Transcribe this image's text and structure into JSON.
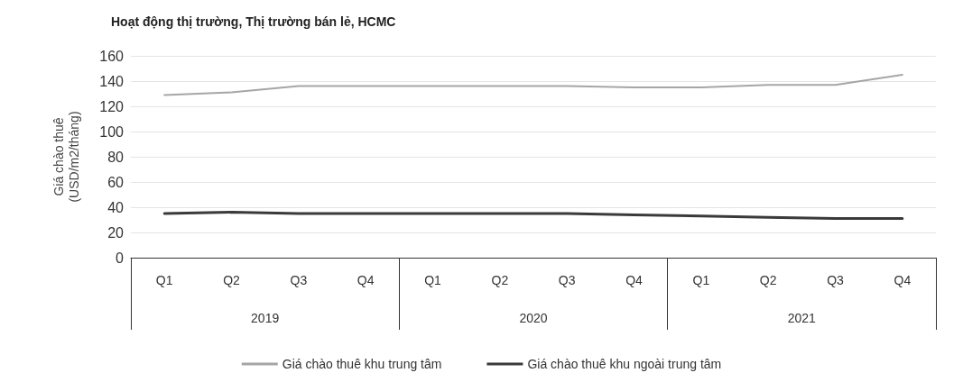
{
  "chart_data": {
    "type": "line",
    "title": "Hoạt động thị trường, Thị trường bán lẻ, HCMC",
    "ylabel": "Giá chào thuê\n(USD/m2/tháng)",
    "categories": [
      "Q1",
      "Q2",
      "Q3",
      "Q4",
      "Q1",
      "Q2",
      "Q3",
      "Q4",
      "Q1",
      "Q2",
      "Q3",
      "Q4"
    ],
    "annotations": [
      "2019",
      "2020",
      "2021"
    ],
    "series": [
      {
        "name": "Giá chào thuê khu trung tâm",
        "color": "#a6a6a6",
        "values": [
          129,
          131,
          136,
          136,
          136,
          136,
          136,
          135,
          135,
          137,
          137,
          145
        ]
      },
      {
        "name": "Giá chào thuê khu ngoài trung tâm",
        "color": "#3a3a3a",
        "values": [
          35,
          36,
          35,
          35,
          35,
          35,
          35,
          34,
          33,
          32,
          31,
          31
        ]
      }
    ],
    "ylim": [
      0,
      160
    ],
    "yticks": [
      0,
      20,
      40,
      60,
      80,
      100,
      120,
      140,
      160
    ],
    "grid": "y",
    "legend": "bottom",
    "marker": "none",
    "line_style": "solid"
  }
}
